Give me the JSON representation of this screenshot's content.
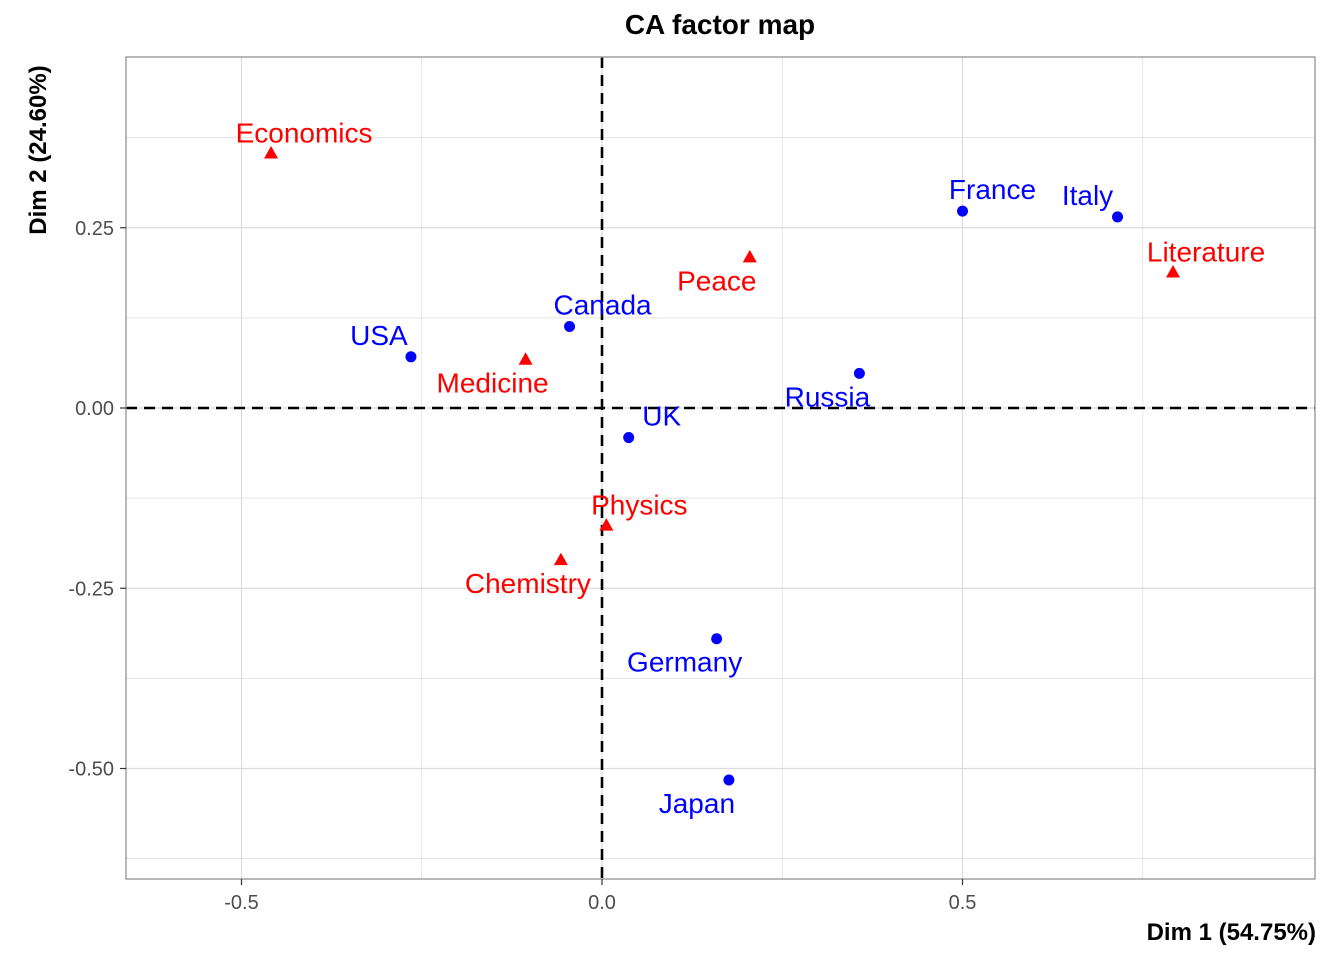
{
  "chart_data": {
    "type": "scatter",
    "title": "CA factor map",
    "xlabel": "Dim 1 (54.75%)",
    "ylabel": "Dim 2 (24.60%)",
    "xlim": [
      -0.65,
      0.98
    ],
    "ylim": [
      -0.62,
      0.52
    ],
    "x_ticks": [
      -0.5,
      0.0,
      0.5
    ],
    "x_tick_labels": [
      "-0.5",
      "0.0",
      "0.5"
    ],
    "y_ticks": [
      0.25,
      0.0,
      -0.25,
      -0.5
    ],
    "y_tick_labels": [
      "0.25",
      "0.00",
      "-0.25",
      "-0.50"
    ],
    "grid": true,
    "reference_lines": {
      "x": 0,
      "y": 0,
      "style": "dashed"
    },
    "colors": {
      "rows": "#0000ff",
      "columns": "#ff0000",
      "grid": "#dcdcdc",
      "panel_border": "#999999"
    },
    "series": [
      {
        "group": "rows",
        "marker": "circle",
        "color": "#0000ff",
        "points": [
          {
            "label": "France",
            "x": 0.5,
            "y": 0.273
          },
          {
            "label": "Italy",
            "x": 0.715,
            "y": 0.265
          },
          {
            "label": "Canada",
            "x": -0.045,
            "y": 0.113
          },
          {
            "label": "USA",
            "x": -0.265,
            "y": 0.071
          },
          {
            "label": "Russia",
            "x": 0.357,
            "y": 0.048
          },
          {
            "label": "UK",
            "x": 0.037,
            "y": -0.041
          },
          {
            "label": "Germany",
            "x": 0.159,
            "y": -0.32
          },
          {
            "label": "Japan",
            "x": 0.176,
            "y": -0.516
          }
        ]
      },
      {
        "group": "columns",
        "marker": "triangle",
        "color": "#ff0000",
        "points": [
          {
            "label": "Economics",
            "x": -0.459,
            "y": 0.353
          },
          {
            "label": "Peace",
            "x": 0.205,
            "y": 0.209
          },
          {
            "label": "Literature",
            "x": 0.792,
            "y": 0.188
          },
          {
            "label": "Medicine",
            "x": -0.106,
            "y": 0.067
          },
          {
            "label": "Physics",
            "x": 0.006,
            "y": -0.163
          },
          {
            "label": "Chemistry",
            "x": -0.057,
            "y": -0.211
          }
        ]
      }
    ]
  }
}
